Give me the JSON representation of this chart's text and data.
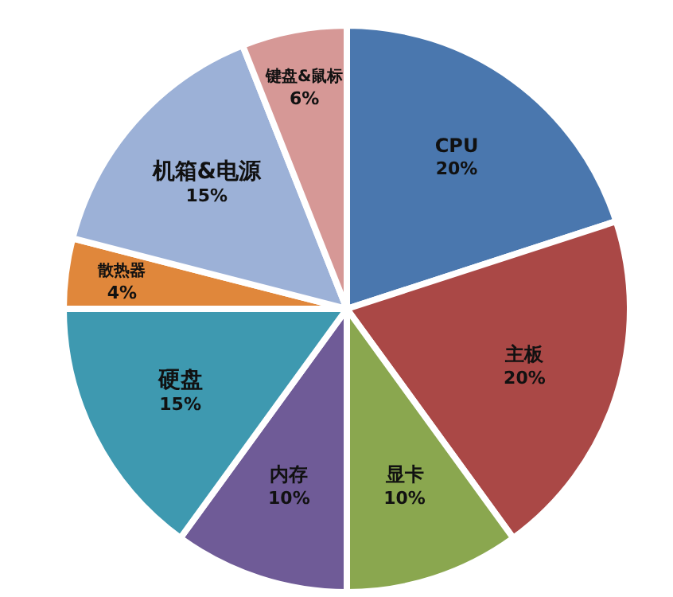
{
  "chart_data": {
    "type": "pie",
    "categories": [
      "CPU",
      "主板",
      "显卡",
      "内存",
      "硬盘",
      "散热器",
      "机箱&电源",
      "键盘&鼠标"
    ],
    "values": [
      20,
      20,
      10,
      10,
      15,
      4,
      15,
      6
    ],
    "value_labels": [
      "20%",
      "20%",
      "10%",
      "10%",
      "15%",
      "4%",
      "15%",
      "6%"
    ],
    "colors": [
      "#4a77ae",
      "#aa4846",
      "#8aa74f",
      "#6f5b97",
      "#3e99b0",
      "#e0873b",
      "#9cb1d7",
      "#d69896"
    ],
    "legend": false
  }
}
